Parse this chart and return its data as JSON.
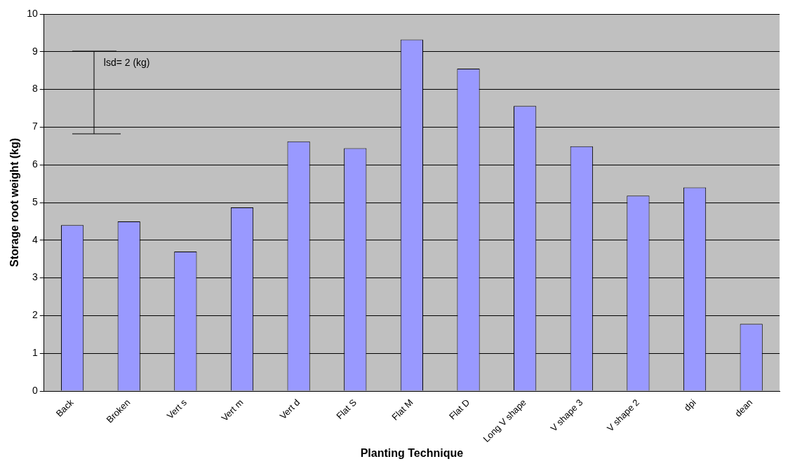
{
  "chart_data": {
    "type": "bar",
    "xlabel": "Planting Technique",
    "ylabel": "Storage root weight (kg)",
    "categories": [
      "Back",
      "Broken",
      "Vert s",
      "Vert m",
      "Vert d",
      "Flat S",
      "Flat M",
      "Flat D",
      "Long V shape",
      "V shape 3",
      "V shape 2",
      "dpi",
      "dean"
    ],
    "values": [
      4.4,
      4.5,
      3.7,
      4.87,
      6.62,
      6.44,
      9.32,
      8.55,
      7.56,
      6.49,
      5.18,
      5.4,
      1.78
    ],
    "color": "#9999ff",
    "ylim": [
      0,
      10
    ],
    "yticks": [
      0,
      1,
      2,
      3,
      4,
      5,
      6,
      7,
      8,
      9,
      10
    ],
    "grid": "y",
    "legend": false,
    "annotations": [
      "lsd= 2 (kg)"
    ]
  }
}
